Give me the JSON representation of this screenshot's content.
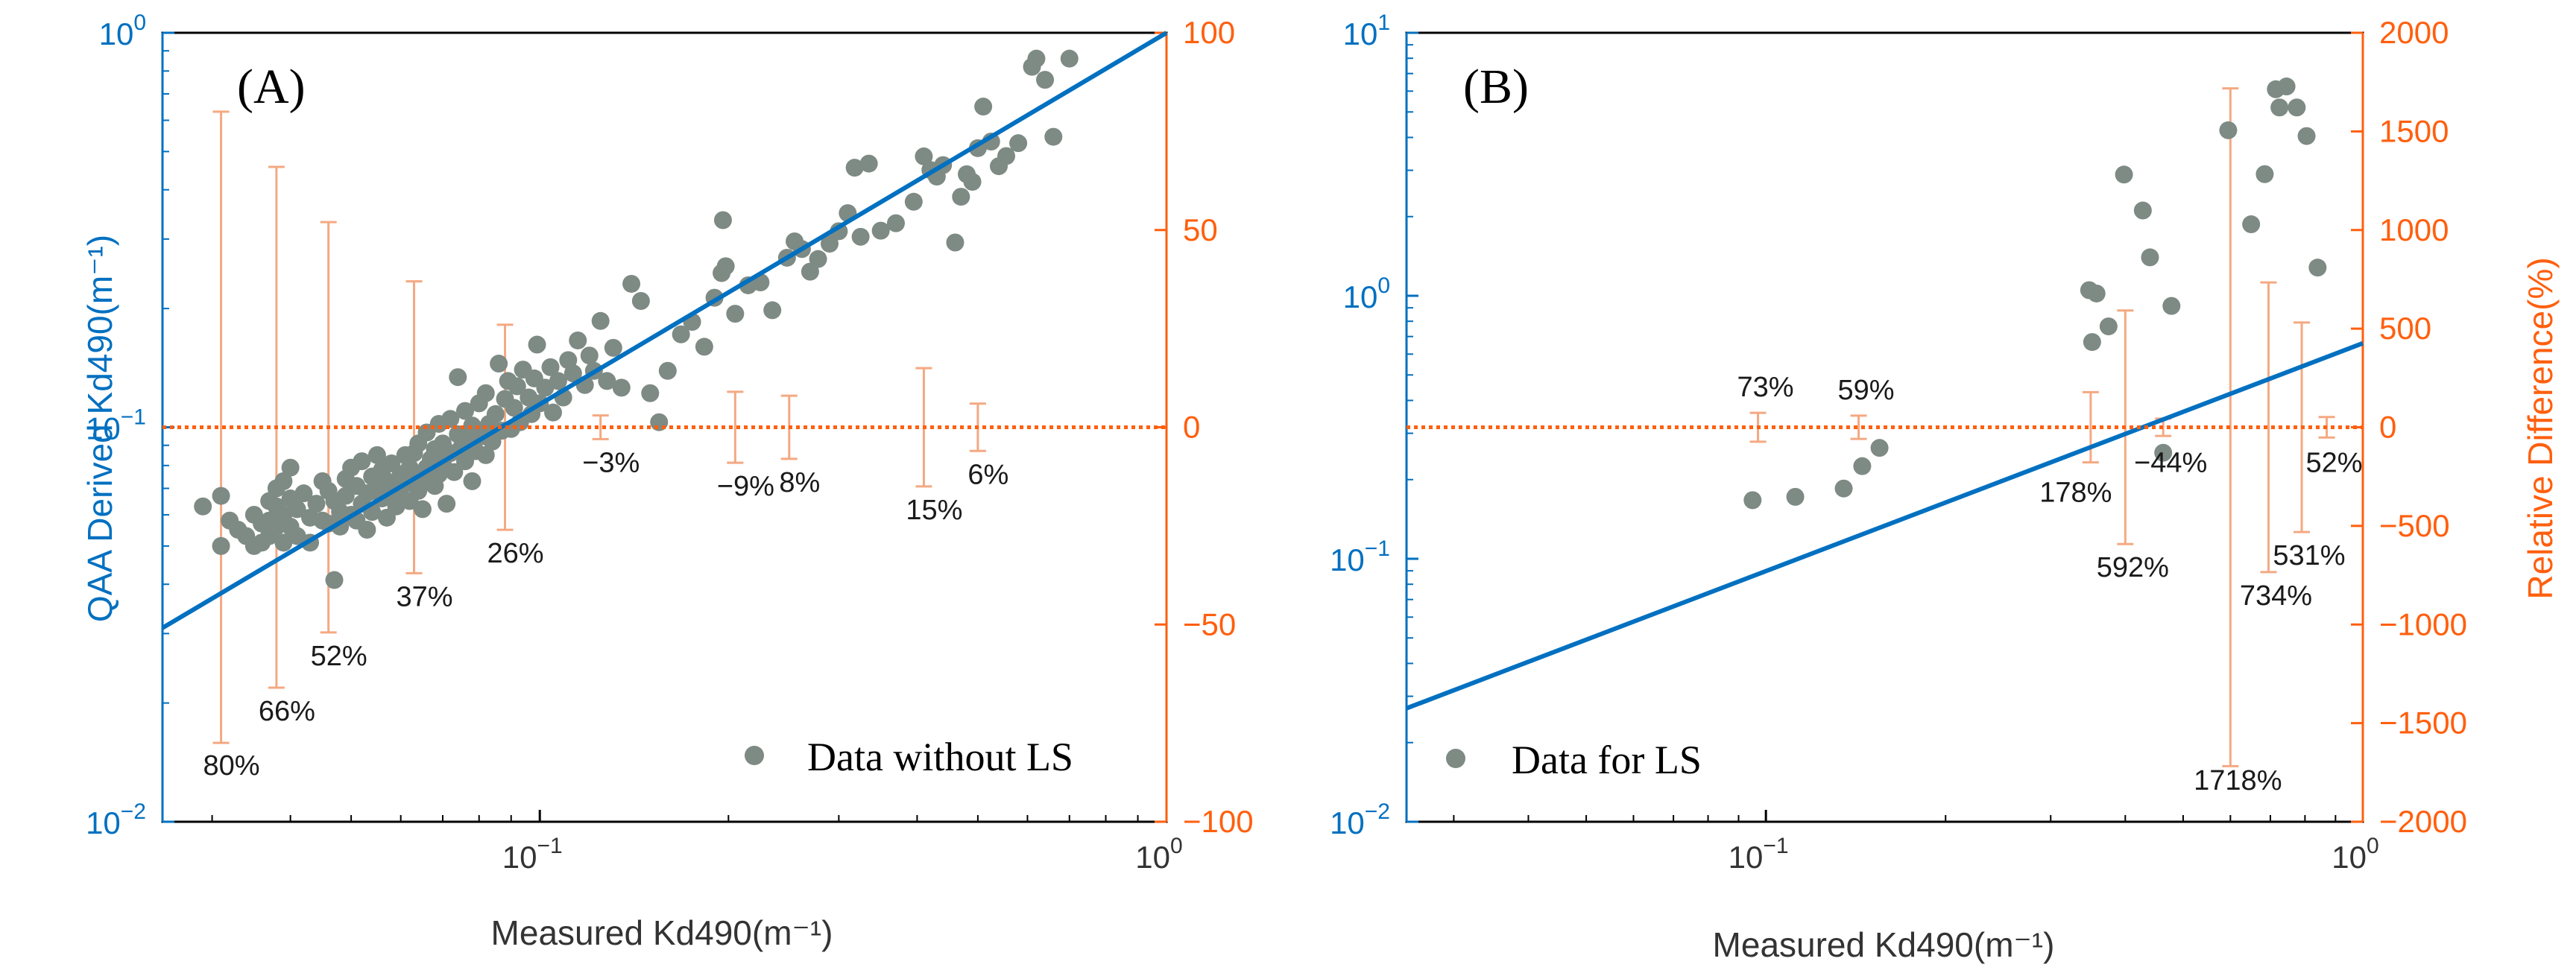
{
  "colors": {
    "left_axis": "#0070C0",
    "right_axis": "#FF5F0E",
    "points": "#7E8A84",
    "errbar": "#F4A982",
    "fit": "#0070C0",
    "refline": "#FF5F0E"
  },
  "chart_data": [
    {
      "type": "scatter",
      "panel_label": "(A)",
      "xlabel": "Measured Kd490(m⁻¹)",
      "ylabel": "QAA Derived Kd490(m⁻¹)",
      "y2label": "",
      "xscale": "log",
      "yscale": "log",
      "xlim": [
        0.025,
        1
      ],
      "ylim": [
        0.01,
        1
      ],
      "y2lim": [
        -100,
        100
      ],
      "x_ticks": [
        {
          "v": 0.1,
          "base": "10",
          "exp": "−1"
        },
        {
          "v": 1,
          "base": "10",
          "exp": "0"
        }
      ],
      "y_ticks": [
        {
          "v": 0.01,
          "base": "10",
          "exp": "−2"
        },
        {
          "v": 0.1,
          "base": "10",
          "exp": "−1"
        },
        {
          "v": 1,
          "base": "10",
          "exp": "0"
        }
      ],
      "y2_ticks": [
        -100,
        -50,
        0,
        50,
        100
      ],
      "legend": "Data without LS",
      "legend_position": "bottom-right",
      "fit_line": {
        "x": [
          0.025,
          1
        ],
        "y": [
          0.031,
          1
        ]
      },
      "reference_line_y2": 0,
      "points": [
        [
          0.029,
          0.063
        ],
        [
          0.031,
          0.067
        ],
        [
          0.031,
          0.05
        ],
        [
          0.032,
          0.058
        ],
        [
          0.033,
          0.055
        ],
        [
          0.034,
          0.053
        ],
        [
          0.035,
          0.06
        ],
        [
          0.035,
          0.05
        ],
        [
          0.036,
          0.057
        ],
        [
          0.036,
          0.051
        ],
        [
          0.037,
          0.065
        ],
        [
          0.037,
          0.058
        ],
        [
          0.037,
          0.053
        ],
        [
          0.038,
          0.07
        ],
        [
          0.038,
          0.063
        ],
        [
          0.038,
          0.056
        ],
        [
          0.039,
          0.073
        ],
        [
          0.039,
          0.06
        ],
        [
          0.039,
          0.051
        ],
        [
          0.04,
          0.066
        ],
        [
          0.04,
          0.056
        ],
        [
          0.04,
          0.079
        ],
        [
          0.041,
          0.062
        ],
        [
          0.041,
          0.053
        ],
        [
          0.042,
          0.068
        ],
        [
          0.043,
          0.059
        ],
        [
          0.043,
          0.051
        ],
        [
          0.044,
          0.064
        ],
        [
          0.045,
          0.073
        ],
        [
          0.045,
          0.058
        ],
        [
          0.046,
          0.057
        ],
        [
          0.046,
          0.069
        ],
        [
          0.047,
          0.041
        ],
        [
          0.047,
          0.065
        ],
        [
          0.048,
          0.061
        ],
        [
          0.048,
          0.056
        ],
        [
          0.049,
          0.074
        ],
        [
          0.049,
          0.067
        ],
        [
          0.05,
          0.06
        ],
        [
          0.05,
          0.079
        ],
        [
          0.051,
          0.071
        ],
        [
          0.051,
          0.058
        ],
        [
          0.052,
          0.064
        ],
        [
          0.052,
          0.082
        ],
        [
          0.053,
          0.068
        ],
        [
          0.053,
          0.055
        ],
        [
          0.054,
          0.075
        ],
        [
          0.054,
          0.061
        ],
        [
          0.055,
          0.07
        ],
        [
          0.055,
          0.085
        ],
        [
          0.056,
          0.066
        ],
        [
          0.056,
          0.078
        ],
        [
          0.057,
          0.059
        ],
        [
          0.057,
          0.073
        ],
        [
          0.058,
          0.068
        ],
        [
          0.058,
          0.081
        ],
        [
          0.059,
          0.071
        ],
        [
          0.059,
          0.063
        ],
        [
          0.06,
          0.076
        ],
        [
          0.06,
          0.067
        ],
        [
          0.061,
          0.085
        ],
        [
          0.061,
          0.072
        ],
        [
          0.062,
          0.065
        ],
        [
          0.062,
          0.079
        ],
        [
          0.063,
          0.075
        ],
        [
          0.063,
          0.086
        ],
        [
          0.064,
          0.069
        ],
        [
          0.064,
          0.091
        ],
        [
          0.065,
          0.074
        ],
        [
          0.065,
          0.062
        ],
        [
          0.066,
          0.079
        ],
        [
          0.066,
          0.097
        ],
        [
          0.067,
          0.083
        ],
        [
          0.068,
          0.071
        ],
        [
          0.068,
          0.088
        ],
        [
          0.069,
          0.076
        ],
        [
          0.069,
          0.102
        ],
        [
          0.07,
          0.091
        ],
        [
          0.07,
          0.081
        ],
        [
          0.071,
          0.064
        ],
        [
          0.072,
          0.105
        ],
        [
          0.072,
          0.086
        ],
        [
          0.073,
          0.077
        ],
        [
          0.074,
          0.096
        ],
        [
          0.074,
          0.134
        ],
        [
          0.075,
          0.089
        ],
        [
          0.076,
          0.082
        ],
        [
          0.076,
          0.11
        ],
        [
          0.077,
          0.093
        ],
        [
          0.078,
          0.101
        ],
        [
          0.078,
          0.073
        ],
        [
          0.079,
          0.087
        ],
        [
          0.08,
          0.115
        ],
        [
          0.081,
          0.095
        ],
        [
          0.082,
          0.122
        ],
        [
          0.082,
          0.085
        ],
        [
          0.083,
          0.102
        ],
        [
          0.084,
          0.092
        ],
        [
          0.085,
          0.108
        ],
        [
          0.086,
          0.145
        ],
        [
          0.087,
          0.098
        ],
        [
          0.088,
          0.118
        ],
        [
          0.089,
          0.131
        ],
        [
          0.09,
          0.099
        ],
        [
          0.091,
          0.112
        ],
        [
          0.092,
          0.127
        ],
        [
          0.093,
          0.103
        ],
        [
          0.094,
          0.14
        ],
        [
          0.096,
          0.119
        ],
        [
          0.097,
          0.108
        ],
        [
          0.098,
          0.133
        ],
        [
          0.099,
          0.162
        ],
        [
          0.1,
          0.115
        ],
        [
          0.102,
          0.126
        ],
        [
          0.104,
          0.142
        ],
        [
          0.105,
          0.109
        ],
        [
          0.107,
          0.131
        ],
        [
          0.109,
          0.119
        ],
        [
          0.111,
          0.148
        ],
        [
          0.113,
          0.137
        ],
        [
          0.115,
          0.166
        ],
        [
          0.118,
          0.128
        ],
        [
          0.12,
          0.152
        ],
        [
          0.122,
          0.139
        ],
        [
          0.125,
          0.186
        ],
        [
          0.128,
          0.131
        ],
        [
          0.131,
          0.159
        ],
        [
          0.135,
          0.126
        ],
        [
          0.14,
          0.231
        ],
        [
          0.145,
          0.209
        ],
        [
          0.15,
          0.122
        ],
        [
          0.155,
          0.103
        ],
        [
          0.16,
          0.139
        ],
        [
          0.168,
          0.172
        ],
        [
          0.175,
          0.185
        ],
        [
          0.183,
          0.16
        ],
        [
          0.19,
          0.213
        ],
        [
          0.195,
          0.246
        ],
        [
          0.196,
          0.335
        ],
        [
          0.198,
          0.256
        ],
        [
          0.205,
          0.194
        ],
        [
          0.215,
          0.229
        ],
        [
          0.225,
          0.233
        ],
        [
          0.235,
          0.198
        ],
        [
          0.248,
          0.269
        ],
        [
          0.255,
          0.296
        ],
        [
          0.262,
          0.283
        ],
        [
          0.27,
          0.248
        ],
        [
          0.278,
          0.267
        ],
        [
          0.29,
          0.292
        ],
        [
          0.3,
          0.314
        ],
        [
          0.31,
          0.349
        ],
        [
          0.318,
          0.455
        ],
        [
          0.325,
          0.304
        ],
        [
          0.335,
          0.466
        ],
        [
          0.35,
          0.315
        ],
        [
          0.37,
          0.329
        ],
        [
          0.395,
          0.373
        ],
        [
          0.41,
          0.486
        ],
        [
          0.42,
          0.449
        ],
        [
          0.43,
          0.432
        ],
        [
          0.44,
          0.462
        ],
        [
          0.46,
          0.294
        ],
        [
          0.47,
          0.384
        ],
        [
          0.48,
          0.438
        ],
        [
          0.49,
          0.419
        ],
        [
          0.5,
          0.51
        ],
        [
          0.51,
          0.65
        ],
        [
          0.525,
          0.53
        ],
        [
          0.54,
          0.459
        ],
        [
          0.555,
          0.487
        ],
        [
          0.58,
          0.525
        ],
        [
          0.61,
          0.82
        ],
        [
          0.62,
          0.86
        ],
        [
          0.64,
          0.76
        ],
        [
          0.66,
          0.545
        ],
        [
          0.7,
          0.86
        ]
      ],
      "errorbars": [
        {
          "x": 0.031,
          "center": 0,
          "half": 80,
          "label": "80%"
        },
        {
          "x": 0.038,
          "center": 0,
          "half": 66,
          "label": "66%"
        },
        {
          "x": 0.046,
          "center": 0,
          "half": 52,
          "label": "52%"
        },
        {
          "x": 0.063,
          "center": 0,
          "half": 37,
          "label": "37%"
        },
        {
          "x": 0.088,
          "center": 0,
          "half": 26,
          "label": "26%"
        },
        {
          "x": 0.125,
          "center": 0,
          "half": 3,
          "label": "−3%"
        },
        {
          "x": 0.205,
          "center": 0,
          "half": 9,
          "label": "−9%"
        },
        {
          "x": 0.25,
          "center": 0,
          "half": 8,
          "label": "8%"
        },
        {
          "x": 0.41,
          "center": 0,
          "half": 15,
          "label": "15%"
        },
        {
          "x": 0.5,
          "center": 0,
          "half": 6,
          "label": "6%"
        }
      ]
    },
    {
      "type": "scatter",
      "panel_label": "(B)",
      "xlabel": "Measured Kd490(m⁻¹)",
      "ylabel": "",
      "y2label": "Relative Difference(%)",
      "xscale": "log",
      "yscale": "log",
      "xlim": [
        0.025,
        1
      ],
      "ylim": [
        0.01,
        10
      ],
      "y2lim": [
        -2000,
        2000
      ],
      "x_ticks": [
        {
          "v": 0.1,
          "base": "10",
          "exp": "−1"
        },
        {
          "v": 1,
          "base": "10",
          "exp": "0"
        }
      ],
      "y_ticks": [
        {
          "v": 0.01,
          "base": "10",
          "exp": "−2"
        },
        {
          "v": 0.1,
          "base": "10",
          "exp": "−1"
        },
        {
          "v": 1,
          "base": "10",
          "exp": "0"
        },
        {
          "v": 10,
          "base": "10",
          "exp": "1"
        }
      ],
      "y2_ticks": [
        -2000,
        -1500,
        -1000,
        -500,
        0,
        500,
        1000,
        1500,
        2000
      ],
      "legend": "Data for LS",
      "legend_position": "bottom-left",
      "fit_line": {
        "x": [
          0.025,
          1
        ],
        "y": [
          0.027,
          0.66
        ]
      },
      "reference_line_y2": 0,
      "points": [
        [
          0.095,
          0.167
        ],
        [
          0.112,
          0.172
        ],
        [
          0.135,
          0.185
        ],
        [
          0.145,
          0.225
        ],
        [
          0.155,
          0.264
        ],
        [
          0.348,
          1.05
        ],
        [
          0.352,
          0.667
        ],
        [
          0.358,
          1.02
        ],
        [
          0.375,
          0.765
        ],
        [
          0.398,
          2.89
        ],
        [
          0.428,
          2.11
        ],
        [
          0.44,
          1.4
        ],
        [
          0.463,
          0.253
        ],
        [
          0.478,
          0.915
        ],
        [
          0.595,
          4.26
        ],
        [
          0.65,
          1.87
        ],
        [
          0.685,
          2.9
        ],
        [
          0.715,
          6.1
        ],
        [
          0.725,
          5.2
        ],
        [
          0.745,
          6.25
        ],
        [
          0.775,
          5.2
        ],
        [
          0.805,
          4.05
        ],
        [
          0.84,
          1.28
        ]
      ],
      "errorbars": [
        {
          "x": 0.097,
          "center": 0,
          "half": 73,
          "label": "73%"
        },
        {
          "x": 0.143,
          "center": 0,
          "half": 59,
          "label": "59%"
        },
        {
          "x": 0.35,
          "center": 0,
          "half": 178,
          "label": "178%"
        },
        {
          "x": 0.4,
          "center": 0,
          "half": 592,
          "label": "592%"
        },
        {
          "x": 0.463,
          "center": 0,
          "half": 44,
          "label": "−44%"
        },
        {
          "x": 0.6,
          "center": 0,
          "half": 1718,
          "label": "1718%"
        },
        {
          "x": 0.695,
          "center": 0,
          "half": 734,
          "label": "734%"
        },
        {
          "x": 0.79,
          "center": 0,
          "half": 531,
          "label": "531%"
        },
        {
          "x": 0.87,
          "center": 0,
          "half": 52,
          "label": "52%"
        }
      ]
    }
  ]
}
